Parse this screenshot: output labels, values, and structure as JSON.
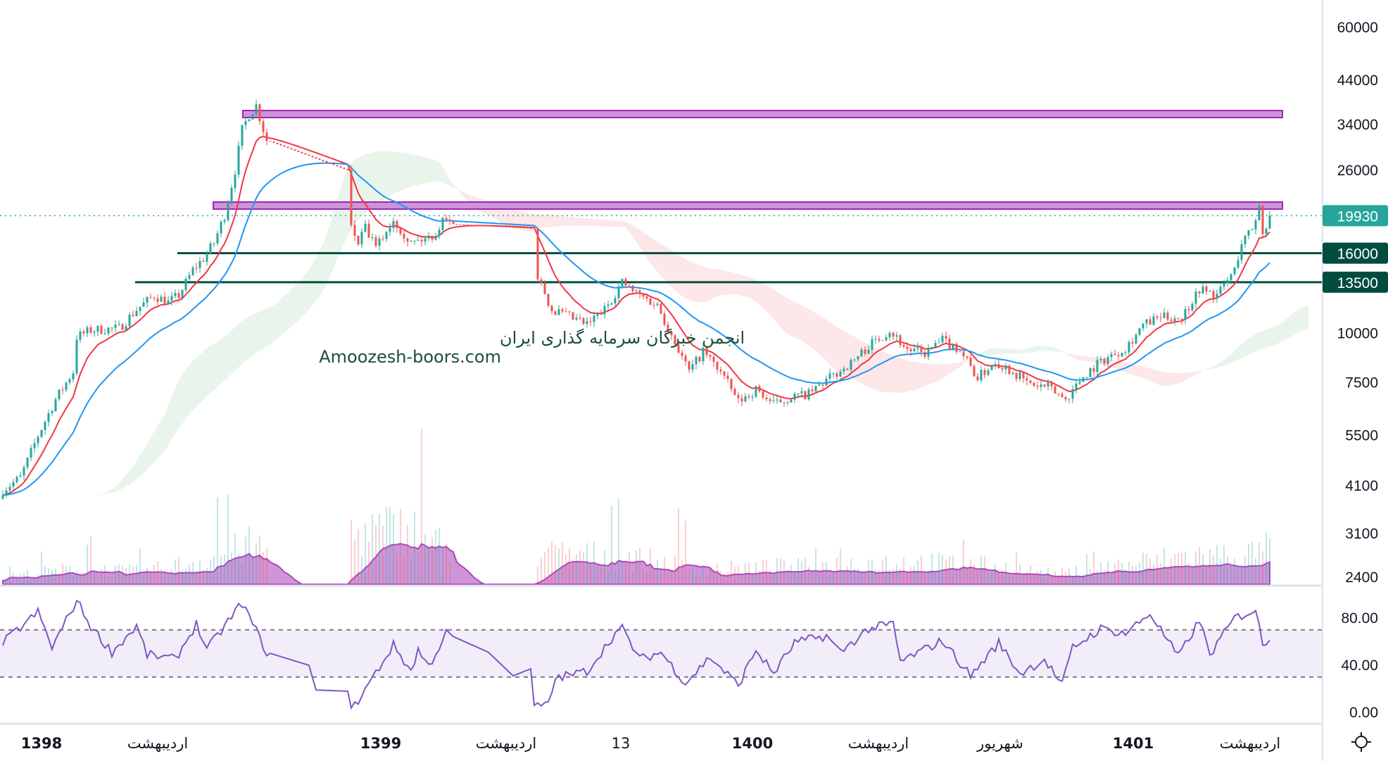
{
  "chart_data": {
    "type": "candlestick",
    "scale": "log",
    "price_axis": {
      "ticks": [
        "60000",
        "44000",
        "34000",
        "26000",
        "10000",
        "7500",
        "5500",
        "4100",
        "3100",
        "2400"
      ],
      "ylim": [
        2400,
        60000
      ]
    },
    "last_price": {
      "label": "19930",
      "value": 19930,
      "color": "#26a69a"
    },
    "levels": [
      {
        "label": "16000",
        "value": 16000,
        "color": "#004d40"
      },
      {
        "label": "13500",
        "value": 13500,
        "color": "#004d40"
      }
    ],
    "zones": [
      {
        "name": "resistance-zone-high",
        "from": 36500,
        "to": 38500,
        "color": "#ce93d8",
        "border": "#9c27b0"
      },
      {
        "name": "resistance-zone-low",
        "from": 20500,
        "to": 21600,
        "color": "#ce93d8",
        "border": "#9c27b0"
      }
    ],
    "price_keypoints": [
      [
        0,
        4000
      ],
      [
        5,
        4300
      ],
      [
        10,
        5500
      ],
      [
        15,
        6800
      ],
      [
        20,
        8000
      ],
      [
        21,
        9800
      ],
      [
        25,
        10200
      ],
      [
        33,
        10300
      ],
      [
        38,
        11500
      ],
      [
        43,
        12500
      ],
      [
        47,
        12000
      ],
      [
        50,
        12500
      ],
      [
        54,
        14500
      ],
      [
        57,
        15500
      ],
      [
        60,
        17000
      ],
      [
        63,
        20000
      ],
      [
        66,
        26000
      ],
      [
        68,
        33000
      ],
      [
        70,
        36000
      ],
      [
        72,
        38000
      ],
      [
        74,
        33000
      ],
      [
        75,
        31000
      ],
      [
        98,
        26000
      ],
      [
        99,
        18500
      ],
      [
        101,
        17000
      ],
      [
        103,
        18500
      ],
      [
        106,
        16500
      ],
      [
        111,
        19500
      ],
      [
        116,
        17000
      ],
      [
        121,
        17500
      ],
      [
        123,
        18000
      ],
      [
        126,
        20000
      ],
      [
        127,
        19000
      ],
      [
        151,
        18500
      ],
      [
        152,
        14000
      ],
      [
        156,
        11500
      ],
      [
        161,
        11000
      ],
      [
        166,
        10500
      ],
      [
        171,
        11500
      ],
      [
        176,
        13500
      ],
      [
        179,
        12800
      ],
      [
        186,
        11800
      ],
      [
        191,
        9500
      ],
      [
        195,
        8000
      ],
      [
        199,
        9000
      ],
      [
        204,
        8000
      ],
      [
        209,
        6700
      ],
      [
        214,
        7200
      ],
      [
        219,
        6600
      ],
      [
        224,
        6900
      ],
      [
        229,
        7000
      ],
      [
        234,
        7600
      ],
      [
        241,
        8400
      ],
      [
        246,
        9300
      ],
      [
        252,
        10200
      ],
      [
        257,
        9100
      ],
      [
        262,
        8900
      ],
      [
        267,
        9600
      ],
      [
        272,
        9100
      ],
      [
        277,
        7700
      ],
      [
        282,
        8500
      ],
      [
        287,
        8000
      ],
      [
        292,
        7400
      ],
      [
        297,
        7300
      ],
      [
        302,
        6800
      ],
      [
        307,
        7800
      ],
      [
        312,
        8500
      ],
      [
        319,
        9200
      ],
      [
        324,
        10500
      ],
      [
        329,
        11000
      ],
      [
        335,
        11000
      ],
      [
        340,
        13000
      ],
      [
        345,
        12500
      ],
      [
        350,
        14500
      ],
      [
        352,
        17000
      ],
      [
        355,
        18500
      ],
      [
        357,
        21000
      ],
      [
        358,
        18000
      ],
      [
        360,
        19930
      ]
    ],
    "closed_market_ranges": [
      [
        75,
        98
      ],
      [
        127,
        151
      ]
    ],
    "volume_intensity_keypoints": [
      [
        0,
        0.15
      ],
      [
        20,
        0.3
      ],
      [
        40,
        0.25
      ],
      [
        55,
        0.45
      ],
      [
        70,
        0.75
      ],
      [
        74,
        0.7
      ],
      [
        99,
        1.0
      ],
      [
        115,
        1.1
      ],
      [
        126,
        0.7
      ],
      [
        152,
        0.6
      ],
      [
        175,
        0.55
      ],
      [
        200,
        0.3
      ],
      [
        230,
        0.35
      ],
      [
        250,
        0.45
      ],
      [
        275,
        0.4
      ],
      [
        300,
        0.2
      ],
      [
        320,
        0.4
      ],
      [
        335,
        0.55
      ],
      [
        360,
        0.6
      ]
    ],
    "rsi": {
      "ticks": [
        "80.00",
        "40.00",
        "0.00"
      ],
      "upper_band": 70,
      "lower_band": 30,
      "ylim": [
        0,
        100
      ],
      "keypoints": [
        [
          0,
          59
        ],
        [
          10,
          85
        ],
        [
          14,
          55
        ],
        [
          21,
          95
        ],
        [
          25,
          73
        ],
        [
          31,
          51
        ],
        [
          38,
          73
        ],
        [
          41,
          49
        ],
        [
          49,
          45
        ],
        [
          55,
          75
        ],
        [
          58,
          53
        ],
        [
          68,
          93
        ],
        [
          75,
          51
        ],
        [
          87,
          40
        ],
        [
          89,
          19
        ],
        [
          98,
          18
        ],
        [
          99,
          1
        ],
        [
          111,
          57
        ],
        [
          116,
          35
        ],
        [
          118,
          53
        ],
        [
          121,
          39
        ],
        [
          126,
          67
        ],
        [
          138,
          51
        ],
        [
          145,
          31
        ],
        [
          150,
          37
        ],
        [
          151,
          6
        ],
        [
          155,
          6
        ],
        [
          157,
          29
        ],
        [
          166,
          35
        ],
        [
          174,
          67
        ],
        [
          176,
          71
        ],
        [
          181,
          45
        ],
        [
          187,
          51
        ],
        [
          194,
          25
        ],
        [
          201,
          47
        ],
        [
          209,
          23
        ],
        [
          214,
          53
        ],
        [
          219,
          33
        ],
        [
          225,
          59
        ],
        [
          234,
          65
        ],
        [
          238,
          51
        ],
        [
          246,
          71
        ],
        [
          253,
          75
        ],
        [
          255,
          43
        ],
        [
          267,
          61
        ],
        [
          275,
          31
        ],
        [
          283,
          59
        ],
        [
          289,
          33
        ],
        [
          296,
          45
        ],
        [
          301,
          23
        ],
        [
          304,
          55
        ],
        [
          312,
          71
        ],
        [
          319,
          67
        ],
        [
          326,
          84
        ],
        [
          334,
          47
        ],
        [
          340,
          78
        ],
        [
          343,
          49
        ],
        [
          350,
          80
        ],
        [
          356,
          87
        ],
        [
          358,
          57
        ],
        [
          360,
          64
        ]
      ]
    },
    "time_axis": [
      {
        "label": "1398",
        "bold": true
      },
      {
        "label": "اردیبهشت",
        "bold": false
      },
      {
        "label": "1399",
        "bold": true
      },
      {
        "label": "اردیبهشت",
        "bold": false
      },
      {
        "label": "13",
        "bold": false
      },
      {
        "label": "1400",
        "bold": true
      },
      {
        "label": "اردیبهشت",
        "bold": false
      },
      {
        "label": "شهریور",
        "bold": false
      },
      {
        "label": "1401",
        "bold": true
      },
      {
        "label": "اردیبهشت",
        "bold": false
      }
    ],
    "moving_averages": [
      {
        "name": "fast",
        "color": "#f23645"
      },
      {
        "name": "slow",
        "color": "#2196f3"
      }
    ],
    "colors": {
      "up": "#26a69a",
      "down": "#ef5350",
      "volume_ma": "#ba68c8",
      "rsi": "#7e57c2"
    }
  },
  "watermark": {
    "line1": "انجمن خبرگان سرمایه گذاری ایران",
    "line2": "Amoozesh-boors.com"
  }
}
